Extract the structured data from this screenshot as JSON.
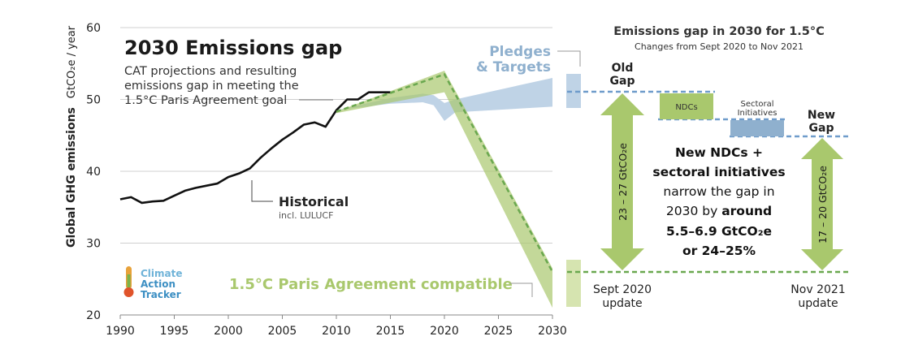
{
  "chart_data": {
    "type": "line",
    "title": "2030 Emissions gap",
    "subtitle": [
      "CAT projections and resulting",
      "emissions gap in meeting the",
      "1.5°C Paris Agreement goal"
    ],
    "ylabel": "Global GHG emissions",
    "yunit": "GtCO₂e / year",
    "xlim": [
      1990,
      2030
    ],
    "ylim": [
      20,
      60
    ],
    "xticks": [
      1990,
      1995,
      2000,
      2005,
      2010,
      2015,
      2020,
      2025,
      2030
    ],
    "yticks": [
      20,
      30,
      40,
      50,
      60
    ],
    "grid": true,
    "series": [
      {
        "name": "Historical",
        "sublabel": "incl. LULUCF",
        "color": "#111111",
        "x": [
          1990,
          1991,
          1992,
          1993,
          1994,
          1995,
          1996,
          1997,
          1998,
          1999,
          2000,
          2001,
          2002,
          2003,
          2004,
          2005,
          2006,
          2007,
          2008,
          2009,
          2010,
          2011,
          2012,
          2013,
          2014,
          2015
        ],
        "y": [
          36.1,
          36.4,
          35.6,
          35.8,
          35.9,
          36.6,
          37.3,
          37.7,
          38.0,
          38.3,
          39.2,
          39.7,
          40.4,
          41.9,
          43.2,
          44.4,
          45.4,
          46.5,
          46.8,
          46.2,
          48.5,
          50.0,
          50.0,
          51.0,
          51.0,
          51.0
        ]
      },
      {
        "name": "Pledges & Targets",
        "color": "#bfd3e6",
        "band_x": [
          2010,
          2015,
          2018,
          2019,
          2020,
          2021,
          2030
        ],
        "band_upper": [
          48.5,
          50.2,
          50.8,
          50.6,
          49.5,
          50.0,
          53.0
        ],
        "band_lower": [
          48.5,
          49.4,
          49.6,
          49.2,
          47.0,
          48.2,
          49.0
        ]
      },
      {
        "name": "1.5°C Paris Agreement compatible",
        "color": "#a9c86d",
        "band_x": [
          2010,
          2020,
          2030
        ],
        "band_upper": [
          48.3,
          54.0,
          26.5
        ],
        "band_lower": [
          48.1,
          51.0,
          21.0
        ],
        "dashed_x": [
          2010,
          2020,
          2030
        ],
        "dashed_y": [
          48.3,
          53.5,
          26.0
        ]
      }
    ],
    "right_panel": {
      "title": "Emissions gap in 2030 for 1.5°C",
      "subtitle": "Changes from Sept 2020 to Nov 2021",
      "old_gap": [
        "Old",
        "Gap"
      ],
      "new_gap": [
        "New",
        "Gap"
      ],
      "ndcs_label": "NDCs",
      "sectoral_label": [
        "Sectoral",
        "Initiatives"
      ],
      "old_gap_range": "23 – 27 GtCO₂e",
      "new_gap_range": "17 – 20 GtCO₂e",
      "message": [
        "New NDCs +",
        "sectoral initiatives",
        "narrow the gap in",
        "2030 by ",
        "around",
        "5.5–6.9 GtCO₂e",
        "or 24–25%"
      ],
      "left_update": [
        "Sept 2020",
        "update"
      ],
      "right_update": [
        "Nov 2021",
        "update"
      ],
      "colors": {
        "arrow": "#a9c86d",
        "ndcs": "#a9c86d",
        "sectoral": "#8fb0ce",
        "dashed_blue": "#6f9ccb",
        "dashed_green": "#6aa84f"
      }
    },
    "logo": [
      "Climate",
      "Action",
      "Tracker"
    ]
  }
}
